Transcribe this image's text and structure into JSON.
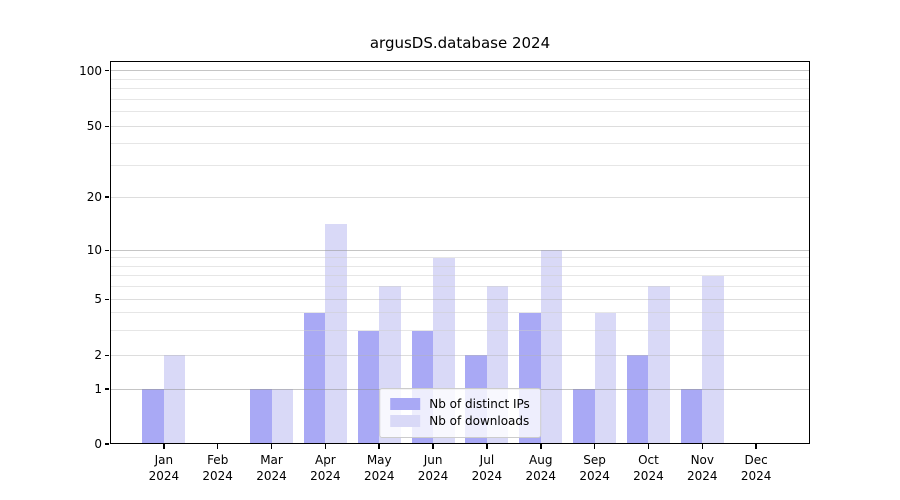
{
  "title": "argusDS.database 2024",
  "colors": {
    "ips": "#a9a9f5",
    "downloads": "#d9d9f7",
    "grid_decade": "rgba(150,150,150,0.55)",
    "grid_labeled": "rgba(180,180,180,0.45)",
    "grid_minor": "rgba(205,205,205,0.5)",
    "spine": "#000000"
  },
  "axes": {
    "ytick_labels": [
      "0",
      "1",
      "2",
      "5",
      "10",
      "20",
      "50",
      "100"
    ],
    "yticks": [
      0,
      1,
      2,
      5,
      10,
      20,
      50,
      100
    ],
    "decade_gridlines": [
      1,
      10,
      100
    ],
    "labeled_gridlines": [
      2,
      5,
      20,
      50
    ],
    "minor_gridlines": [
      3,
      4,
      6,
      7,
      8,
      9,
      30,
      40,
      60,
      70,
      80,
      90
    ],
    "months": [
      "Jan",
      "Feb",
      "Mar",
      "Apr",
      "May",
      "Jun",
      "Jul",
      "Aug",
      "Sep",
      "Oct",
      "Nov",
      "Dec"
    ],
    "year": "2024"
  },
  "legend": {
    "items": [
      {
        "label": "Nb of distinct IPs",
        "color_key": "ips"
      },
      {
        "label": "Nb of downloads",
        "color_key": "downloads"
      }
    ]
  },
  "chart_data": {
    "type": "bar",
    "title": "argusDS.database 2024",
    "categories": [
      "Jan 2024",
      "Feb 2024",
      "Mar 2024",
      "Apr 2024",
      "May 2024",
      "Jun 2024",
      "Jul 2024",
      "Aug 2024",
      "Sep 2024",
      "Oct 2024",
      "Nov 2024",
      "Dec 2024"
    ],
    "series": [
      {
        "name": "Nb of distinct IPs",
        "values": [
          1,
          0,
          1,
          4,
          3,
          3,
          2,
          4,
          1,
          2,
          1,
          0
        ]
      },
      {
        "name": "Nb of downloads",
        "values": [
          2,
          0,
          1,
          14,
          6,
          9,
          6,
          10,
          4,
          6,
          7,
          0
        ]
      }
    ],
    "xlabel": "",
    "ylabel": "",
    "yscale": "log-like (0,1,2,5,10,20,50,100 ticks, 0 at baseline)",
    "yticks": [
      0,
      1,
      2,
      5,
      10,
      20,
      50,
      100
    ],
    "ylim": [
      0,
      115
    ],
    "grid": true,
    "legend_position": "lower center"
  }
}
